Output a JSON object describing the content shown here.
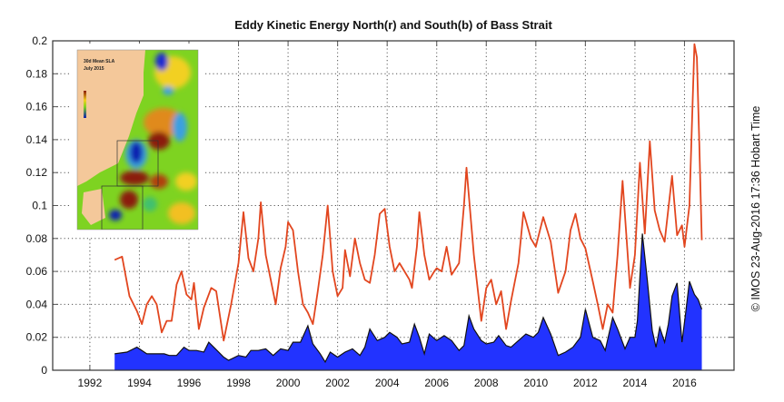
{
  "chart_data": {
    "type": "line",
    "title": "Eddy Kinetic Energy North(r) and South(b) of Bass Strait",
    "xlabel": "",
    "ylabel": "",
    "xlim": [
      1990.5,
      2018
    ],
    "ylim": [
      0,
      0.2
    ],
    "grid": true,
    "xticks": [
      "1992",
      "1994",
      "1996",
      "1998",
      "2000",
      "2002",
      "2004",
      "2006",
      "2008",
      "2010",
      "2012",
      "2014",
      "2016"
    ],
    "yticks": [
      "0",
      "0.02",
      "0.04",
      "0.06",
      "0.08",
      "0.1",
      "0.12",
      "0.14",
      "0.16",
      "0.18",
      "0.2"
    ],
    "series": [
      {
        "name": "North (r)",
        "color": "#e2461f",
        "style": "line",
        "points": [
          [
            1993.0,
            0.067
          ],
          [
            1993.3,
            0.069
          ],
          [
            1993.6,
            0.045
          ],
          [
            1993.9,
            0.036
          ],
          [
            1994.1,
            0.028
          ],
          [
            1994.3,
            0.04
          ],
          [
            1994.5,
            0.045
          ],
          [
            1994.7,
            0.04
          ],
          [
            1994.9,
            0.023
          ],
          [
            1995.1,
            0.03
          ],
          [
            1995.3,
            0.03
          ],
          [
            1995.5,
            0.052
          ],
          [
            1995.7,
            0.06
          ],
          [
            1995.9,
            0.046
          ],
          [
            1996.1,
            0.043
          ],
          [
            1996.2,
            0.053
          ],
          [
            1996.4,
            0.025
          ],
          [
            1996.6,
            0.038
          ],
          [
            1996.9,
            0.05
          ],
          [
            1997.1,
            0.048
          ],
          [
            1997.4,
            0.018
          ],
          [
            1997.7,
            0.04
          ],
          [
            1998.0,
            0.065
          ],
          [
            1998.2,
            0.096
          ],
          [
            1998.4,
            0.068
          ],
          [
            1998.6,
            0.06
          ],
          [
            1998.8,
            0.08
          ],
          [
            1998.9,
            0.102
          ],
          [
            1999.1,
            0.07
          ],
          [
            1999.3,
            0.055
          ],
          [
            1999.5,
            0.04
          ],
          [
            1999.7,
            0.062
          ],
          [
            1999.9,
            0.075
          ],
          [
            2000.0,
            0.09
          ],
          [
            2000.2,
            0.085
          ],
          [
            2000.4,
            0.06
          ],
          [
            2000.6,
            0.04
          ],
          [
            2000.8,
            0.035
          ],
          [
            2001.0,
            0.028
          ],
          [
            2001.2,
            0.048
          ],
          [
            2001.4,
            0.07
          ],
          [
            2001.6,
            0.1
          ],
          [
            2001.8,
            0.06
          ],
          [
            2002.0,
            0.045
          ],
          [
            2002.2,
            0.05
          ],
          [
            2002.3,
            0.073
          ],
          [
            2002.5,
            0.057
          ],
          [
            2002.7,
            0.08
          ],
          [
            2002.9,
            0.065
          ],
          [
            2003.1,
            0.055
          ],
          [
            2003.3,
            0.053
          ],
          [
            2003.5,
            0.07
          ],
          [
            2003.7,
            0.095
          ],
          [
            2003.9,
            0.098
          ],
          [
            2004.1,
            0.075
          ],
          [
            2004.3,
            0.06
          ],
          [
            2004.5,
            0.065
          ],
          [
            2004.7,
            0.06
          ],
          [
            2004.9,
            0.055
          ],
          [
            2005.0,
            0.05
          ],
          [
            2005.2,
            0.075
          ],
          [
            2005.3,
            0.096
          ],
          [
            2005.5,
            0.07
          ],
          [
            2005.7,
            0.055
          ],
          [
            2005.9,
            0.06
          ],
          [
            2006.0,
            0.062
          ],
          [
            2006.2,
            0.06
          ],
          [
            2006.4,
            0.075
          ],
          [
            2006.6,
            0.058
          ],
          [
            2006.9,
            0.065
          ],
          [
            2007.1,
            0.1
          ],
          [
            2007.2,
            0.123
          ],
          [
            2007.5,
            0.07
          ],
          [
            2007.8,
            0.03
          ],
          [
            2008.0,
            0.05
          ],
          [
            2008.2,
            0.055
          ],
          [
            2008.4,
            0.04
          ],
          [
            2008.6,
            0.048
          ],
          [
            2008.8,
            0.025
          ],
          [
            2009.0,
            0.042
          ],
          [
            2009.3,
            0.065
          ],
          [
            2009.5,
            0.096
          ],
          [
            2009.8,
            0.08
          ],
          [
            2010.0,
            0.075
          ],
          [
            2010.3,
            0.093
          ],
          [
            2010.6,
            0.078
          ],
          [
            2010.9,
            0.047
          ],
          [
            2011.2,
            0.06
          ],
          [
            2011.4,
            0.085
          ],
          [
            2011.6,
            0.095
          ],
          [
            2011.8,
            0.08
          ],
          [
            2012.0,
            0.074
          ],
          [
            2012.3,
            0.054
          ],
          [
            2012.5,
            0.04
          ],
          [
            2012.7,
            0.025
          ],
          [
            2012.9,
            0.04
          ],
          [
            2013.1,
            0.035
          ],
          [
            2013.3,
            0.07
          ],
          [
            2013.5,
            0.115
          ],
          [
            2013.8,
            0.05
          ],
          [
            2014.0,
            0.07
          ],
          [
            2014.2,
            0.126
          ],
          [
            2014.4,
            0.083
          ],
          [
            2014.6,
            0.139
          ],
          [
            2014.8,
            0.097
          ],
          [
            2015.0,
            0.085
          ],
          [
            2015.2,
            0.078
          ],
          [
            2015.5,
            0.118
          ],
          [
            2015.7,
            0.082
          ],
          [
            2015.9,
            0.088
          ],
          [
            2016.0,
            0.075
          ],
          [
            2016.2,
            0.1
          ],
          [
            2016.4,
            0.198
          ],
          [
            2016.5,
            0.19
          ],
          [
            2016.6,
            0.137
          ],
          [
            2016.7,
            0.079
          ]
        ]
      },
      {
        "name": "South (b)",
        "color": "#2233ff",
        "style": "area",
        "points": [
          [
            1993.0,
            0.01
          ],
          [
            1993.5,
            0.011
          ],
          [
            1993.9,
            0.014
          ],
          [
            1994.3,
            0.01
          ],
          [
            1994.6,
            0.01
          ],
          [
            1995.0,
            0.01
          ],
          [
            1995.2,
            0.009
          ],
          [
            1995.5,
            0.009
          ],
          [
            1995.8,
            0.014
          ],
          [
            1996.0,
            0.012
          ],
          [
            1996.3,
            0.012
          ],
          [
            1996.6,
            0.011
          ],
          [
            1996.8,
            0.017
          ],
          [
            1997.0,
            0.014
          ],
          [
            1997.4,
            0.008
          ],
          [
            1997.6,
            0.006
          ],
          [
            1998.0,
            0.009
          ],
          [
            1998.3,
            0.008
          ],
          [
            1998.5,
            0.012
          ],
          [
            1998.8,
            0.012
          ],
          [
            1999.1,
            0.013
          ],
          [
            1999.4,
            0.009
          ],
          [
            1999.7,
            0.013
          ],
          [
            2000.0,
            0.012
          ],
          [
            2000.2,
            0.017
          ],
          [
            2000.5,
            0.017
          ],
          [
            2000.8,
            0.027
          ],
          [
            2001.0,
            0.016
          ],
          [
            2001.3,
            0.01
          ],
          [
            2001.5,
            0.005
          ],
          [
            2001.7,
            0.011
          ],
          [
            2002.0,
            0.008
          ],
          [
            2002.3,
            0.011
          ],
          [
            2002.6,
            0.013
          ],
          [
            2002.9,
            0.009
          ],
          [
            2003.1,
            0.014
          ],
          [
            2003.3,
            0.025
          ],
          [
            2003.6,
            0.018
          ],
          [
            2003.9,
            0.02
          ],
          [
            2004.1,
            0.023
          ],
          [
            2004.4,
            0.02
          ],
          [
            2004.6,
            0.016
          ],
          [
            2004.9,
            0.017
          ],
          [
            2005.1,
            0.028
          ],
          [
            2005.3,
            0.02
          ],
          [
            2005.5,
            0.01
          ],
          [
            2005.7,
            0.022
          ],
          [
            2006.0,
            0.018
          ],
          [
            2006.3,
            0.021
          ],
          [
            2006.6,
            0.018
          ],
          [
            2006.9,
            0.012
          ],
          [
            2007.1,
            0.015
          ],
          [
            2007.3,
            0.033
          ],
          [
            2007.5,
            0.025
          ],
          [
            2007.8,
            0.018
          ],
          [
            2008.0,
            0.016
          ],
          [
            2008.3,
            0.017
          ],
          [
            2008.5,
            0.021
          ],
          [
            2008.8,
            0.015
          ],
          [
            2009.0,
            0.014
          ],
          [
            2009.3,
            0.018
          ],
          [
            2009.6,
            0.022
          ],
          [
            2009.9,
            0.02
          ],
          [
            2010.1,
            0.023
          ],
          [
            2010.3,
            0.032
          ],
          [
            2010.6,
            0.022
          ],
          [
            2010.9,
            0.009
          ],
          [
            2011.2,
            0.011
          ],
          [
            2011.5,
            0.014
          ],
          [
            2011.8,
            0.02
          ],
          [
            2012.0,
            0.037
          ],
          [
            2012.3,
            0.02
          ],
          [
            2012.6,
            0.018
          ],
          [
            2012.8,
            0.012
          ],
          [
            2013.1,
            0.032
          ],
          [
            2013.3,
            0.025
          ],
          [
            2013.6,
            0.013
          ],
          [
            2013.8,
            0.02
          ],
          [
            2014.0,
            0.02
          ],
          [
            2014.1,
            0.03
          ],
          [
            2014.3,
            0.083
          ],
          [
            2014.5,
            0.055
          ],
          [
            2014.7,
            0.024
          ],
          [
            2014.85,
            0.014
          ],
          [
            2015.0,
            0.026
          ],
          [
            2015.2,
            0.017
          ],
          [
            2015.35,
            0.028
          ],
          [
            2015.5,
            0.045
          ],
          [
            2015.7,
            0.053
          ],
          [
            2015.9,
            0.017
          ],
          [
            2016.05,
            0.035
          ],
          [
            2016.2,
            0.054
          ],
          [
            2016.4,
            0.046
          ],
          [
            2016.55,
            0.043
          ],
          [
            2016.7,
            0.037
          ]
        ]
      }
    ],
    "inset": {
      "title_line1": "30d Mean SLA",
      "title_line2": "July 2015"
    },
    "credit": "© IMOS 23-Aug-2016 17:36 Hobart Time"
  }
}
